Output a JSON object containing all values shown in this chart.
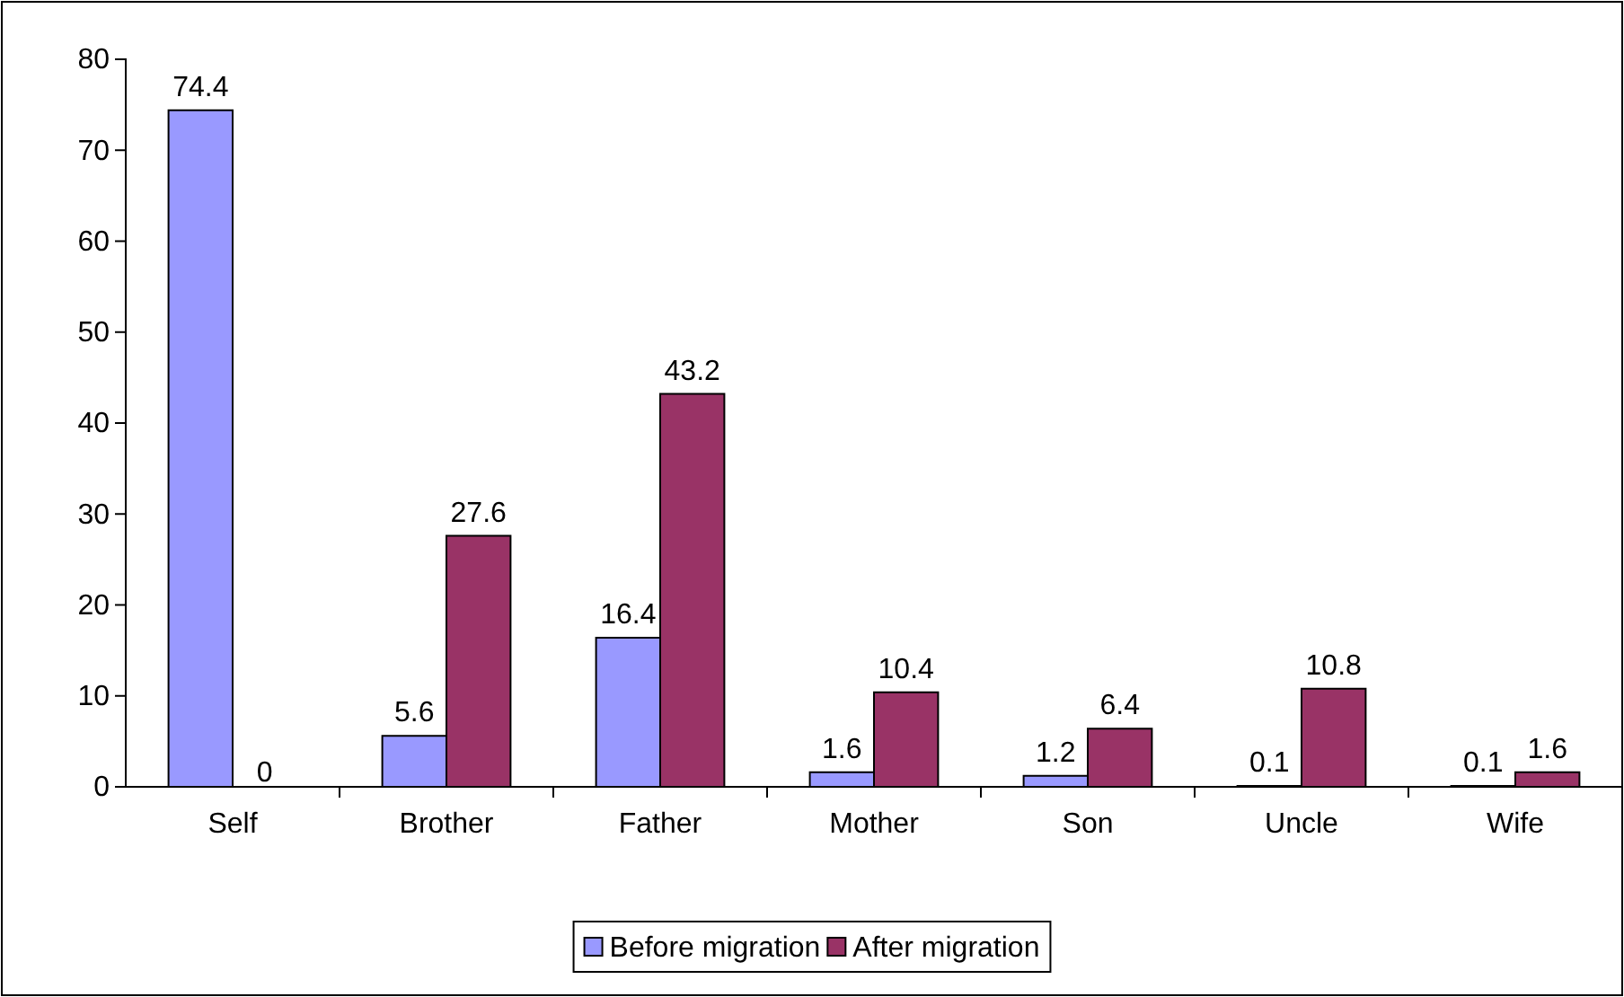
{
  "chart_data": {
    "type": "bar",
    "categories": [
      "Self",
      "Brother",
      "Father",
      "Mother",
      "Son",
      "Uncle",
      "Wife"
    ],
    "series": [
      {
        "name": "Before migration",
        "color": "#9999ff",
        "values": [
          74.4,
          5.6,
          16.4,
          1.6,
          1.2,
          0.1,
          0.1
        ]
      },
      {
        "name": "After migration",
        "color": "#993366",
        "values": [
          0,
          27.6,
          43.2,
          10.4,
          6.4,
          10.8,
          1.6
        ]
      }
    ],
    "ylim": [
      0,
      80
    ],
    "yticks": [
      0,
      10,
      20,
      30,
      40,
      50,
      60,
      70,
      80
    ],
    "grid": false,
    "legend": "bottom",
    "data_labels": true
  }
}
